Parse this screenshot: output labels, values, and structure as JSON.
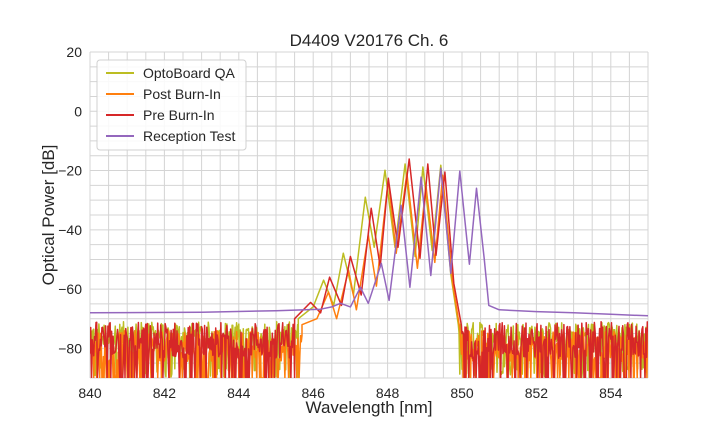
{
  "chart_data": {
    "type": "line",
    "title": "D4409 V20176 Ch. 6",
    "xlabel": "Wavelength [nm]",
    "ylabel": "Optical Power [dB]",
    "xlim": [
      840,
      855
    ],
    "ylim": [
      -90,
      20
    ],
    "xticks": [
      840,
      842,
      844,
      846,
      848,
      850,
      852,
      854
    ],
    "yticks": [
      20,
      0,
      -20,
      -40,
      -60,
      -80
    ],
    "grid": true,
    "minor_grid_step": {
      "x": 0.5,
      "y": 5
    },
    "legend_placement": "top-left",
    "series": [
      {
        "name": "OptoBoard QA",
        "color": "#bcbd22",
        "noise": {
          "min": -86,
          "max": -71
        },
        "points": [
          [
            845.6,
            -70
          ],
          [
            846.0,
            -66
          ],
          [
            846.28,
            -57
          ],
          [
            846.55,
            -65.5
          ],
          [
            846.81,
            -47.9
          ],
          [
            847.08,
            -62
          ],
          [
            847.4,
            -29
          ],
          [
            847.64,
            -45.9
          ],
          [
            847.93,
            -19.9
          ],
          [
            848.2,
            -45.9
          ],
          [
            848.47,
            -17.8
          ],
          [
            848.74,
            -49
          ],
          [
            848.95,
            -18.8
          ],
          [
            849.2,
            -47
          ],
          [
            849.43,
            -18.2
          ],
          [
            849.7,
            -55
          ],
          [
            849.9,
            -72
          ]
        ]
      },
      {
        "name": "Post Burn-In",
        "color": "#ff7f0e",
        "noise": {
          "min": -90,
          "max": -74
        },
        "points": [
          [
            845.7,
            -72
          ],
          [
            846.1,
            -70
          ],
          [
            846.41,
            -61
          ],
          [
            846.63,
            -70
          ],
          [
            846.95,
            -53.6
          ],
          [
            847.16,
            -67
          ],
          [
            847.48,
            -41.8
          ],
          [
            847.7,
            -59
          ],
          [
            848.02,
            -23.2
          ],
          [
            848.23,
            -47.9
          ],
          [
            848.52,
            -20.9
          ],
          [
            848.8,
            -53
          ],
          [
            849.03,
            -25
          ],
          [
            849.27,
            -51
          ],
          [
            849.48,
            -21.6
          ],
          [
            849.75,
            -58
          ],
          [
            849.95,
            -74
          ]
        ]
      },
      {
        "name": "Pre Burn-In",
        "color": "#d62728",
        "noise": {
          "min": -90,
          "max": -71
        },
        "points": [
          [
            845.5,
            -70
          ],
          [
            845.93,
            -64.5
          ],
          [
            846.2,
            -68
          ],
          [
            846.44,
            -56
          ],
          [
            846.76,
            -65.5
          ],
          [
            847.0,
            -49
          ],
          [
            847.29,
            -62
          ],
          [
            847.56,
            -32.7
          ],
          [
            847.8,
            -52.5
          ],
          [
            848.02,
            -22.6
          ],
          [
            848.28,
            -45.9
          ],
          [
            848.58,
            -16.1
          ],
          [
            848.87,
            -49.6
          ],
          [
            849.08,
            -17.8
          ],
          [
            849.3,
            -48.6
          ],
          [
            849.54,
            -20.5
          ],
          [
            849.78,
            -58
          ],
          [
            849.98,
            -72
          ]
        ]
      },
      {
        "name": "Reception Test",
        "color": "#9467bd",
        "points": [
          [
            840,
            -68
          ],
          [
            843,
            -67.8
          ],
          [
            845,
            -67.3
          ],
          [
            846.2,
            -66.8
          ],
          [
            846.5,
            -66
          ],
          [
            846.73,
            -64.8
          ],
          [
            847.0,
            -66
          ],
          [
            847.27,
            -59.4
          ],
          [
            847.48,
            -64.8
          ],
          [
            847.83,
            -51.3
          ],
          [
            848.04,
            -63.8
          ],
          [
            848.36,
            -31.7
          ],
          [
            848.6,
            -59.4
          ],
          [
            848.9,
            -22.2
          ],
          [
            849.16,
            -55.4
          ],
          [
            849.43,
            -19.2
          ],
          [
            849.7,
            -54.7
          ],
          [
            849.94,
            -20.2
          ],
          [
            850.2,
            -51.6
          ],
          [
            850.39,
            -26
          ],
          [
            850.6,
            -50
          ],
          [
            850.72,
            -65.5
          ],
          [
            851.0,
            -67
          ],
          [
            852,
            -67.6
          ],
          [
            853,
            -68
          ],
          [
            854,
            -68.5
          ],
          [
            855,
            -69
          ]
        ]
      }
    ]
  }
}
